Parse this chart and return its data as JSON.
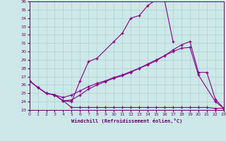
{
  "xlabel": "Windchill (Refroidissement éolien,°C)",
  "bg_color": "#cce8e8",
  "line_color": "#880088",
  "grid_color": "#aacccc",
  "xlim": [
    0,
    23
  ],
  "ylim": [
    23,
    36
  ],
  "curve1_x": [
    0,
    1,
    2,
    3,
    4,
    5,
    6,
    7,
    8,
    10,
    11,
    12,
    13,
    14,
    15,
    16,
    17
  ],
  "curve1_y": [
    26.5,
    25.7,
    25.0,
    24.8,
    24.1,
    24.0,
    26.5,
    28.8,
    29.2,
    31.2,
    32.2,
    34.0,
    34.3,
    35.5,
    36.2,
    36.1,
    31.2
  ],
  "curve2_x": [
    0,
    1,
    2,
    3,
    4,
    5,
    6,
    7,
    8,
    9,
    10,
    11,
    12,
    13,
    14,
    15,
    16,
    17,
    18,
    19,
    20,
    22,
    23
  ],
  "curve2_y": [
    26.5,
    25.7,
    25.0,
    24.8,
    24.5,
    24.8,
    25.3,
    25.8,
    26.2,
    26.5,
    26.9,
    27.2,
    27.6,
    28.0,
    28.5,
    29.0,
    29.5,
    30.0,
    30.4,
    30.5,
    27.2,
    24.0,
    23.2
  ],
  "curve3_x": [
    0,
    1,
    2,
    3,
    4,
    5,
    6,
    7,
    8,
    9,
    10,
    11,
    12,
    13,
    14,
    15,
    16,
    17,
    18,
    19,
    20,
    21,
    22,
    23
  ],
  "curve3_y": [
    26.5,
    25.7,
    25.0,
    24.8,
    24.1,
    23.3,
    23.3,
    23.3,
    23.3,
    23.3,
    23.3,
    23.3,
    23.3,
    23.3,
    23.3,
    23.3,
    23.3,
    23.3,
    23.3,
    23.3,
    23.3,
    23.3,
    23.2,
    23.2
  ],
  "curve4_x": [
    3,
    4,
    5,
    6,
    7,
    8,
    9,
    10,
    11,
    12,
    13,
    14,
    15,
    16,
    17,
    18,
    19,
    20,
    21,
    22,
    23
  ],
  "curve4_y": [
    24.8,
    24.1,
    24.2,
    24.8,
    25.5,
    26.0,
    26.4,
    26.8,
    27.1,
    27.5,
    28.0,
    28.4,
    28.9,
    29.5,
    30.2,
    30.8,
    31.2,
    27.5,
    27.5,
    24.3,
    23.2
  ]
}
